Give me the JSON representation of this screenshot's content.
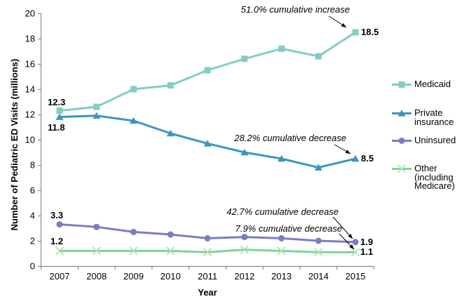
{
  "chart_data": {
    "type": "line",
    "title": "",
    "xlabel": "Year",
    "ylabel": "Number of Pediatric ED Visits (millions)",
    "x_categories": [
      "2007",
      "2008",
      "2009",
      "2010",
      "2011",
      "2012",
      "2013",
      "2014",
      "2015"
    ],
    "ylim": [
      0,
      20
    ],
    "yticks": [
      0,
      2,
      4,
      6,
      8,
      10,
      12,
      14,
      16,
      18,
      20
    ],
    "grid": false,
    "legend_position": "right",
    "axis_color": "#8c8c8c",
    "text_color": "#000000",
    "series": [
      {
        "id": "medicaid",
        "name": "Medicaid",
        "marker": "square",
        "color": "#82CDC4",
        "values": [
          12.3,
          12.6,
          14.0,
          14.3,
          15.5,
          16.4,
          17.2,
          16.6,
          18.5
        ],
        "first_label": "12.3",
        "last_label": "18.5"
      },
      {
        "id": "private-insurance",
        "name": "Private insurance",
        "marker": "triangle",
        "color": "#3C96C0",
        "values": [
          11.8,
          11.9,
          11.5,
          10.5,
          9.7,
          9.0,
          8.5,
          7.8,
          8.5
        ],
        "first_label": "11.8",
        "last_label": "8.5"
      },
      {
        "id": "uninsured",
        "name": "Uninsured",
        "marker": "circle",
        "color": "#7A7DC3",
        "values": [
          3.3,
          3.1,
          2.7,
          2.5,
          2.2,
          2.3,
          2.2,
          2.0,
          1.9
        ],
        "first_label": "3.3",
        "last_label": "1.9"
      },
      {
        "id": "other",
        "name": "Other (including Medicare)",
        "marker": "x",
        "color": "#7ED398",
        "marker_color": "#A8E2B4",
        "values": [
          1.2,
          1.2,
          1.2,
          1.2,
          1.1,
          1.3,
          1.2,
          1.1,
          1.1
        ],
        "first_label": "1.2",
        "last_label": "1.1"
      }
    ],
    "annotations": [
      {
        "text": "51.0% cumulative increase",
        "target": "Medicaid 2015"
      },
      {
        "text": "28.2% cumulative decrease",
        "target": "Private insurance 2015"
      },
      {
        "text": "42.7% cumulative decrease",
        "target": "Uninsured 2015"
      },
      {
        "text": "7.9% cumulative decrease",
        "target": "Other 2015"
      }
    ]
  }
}
